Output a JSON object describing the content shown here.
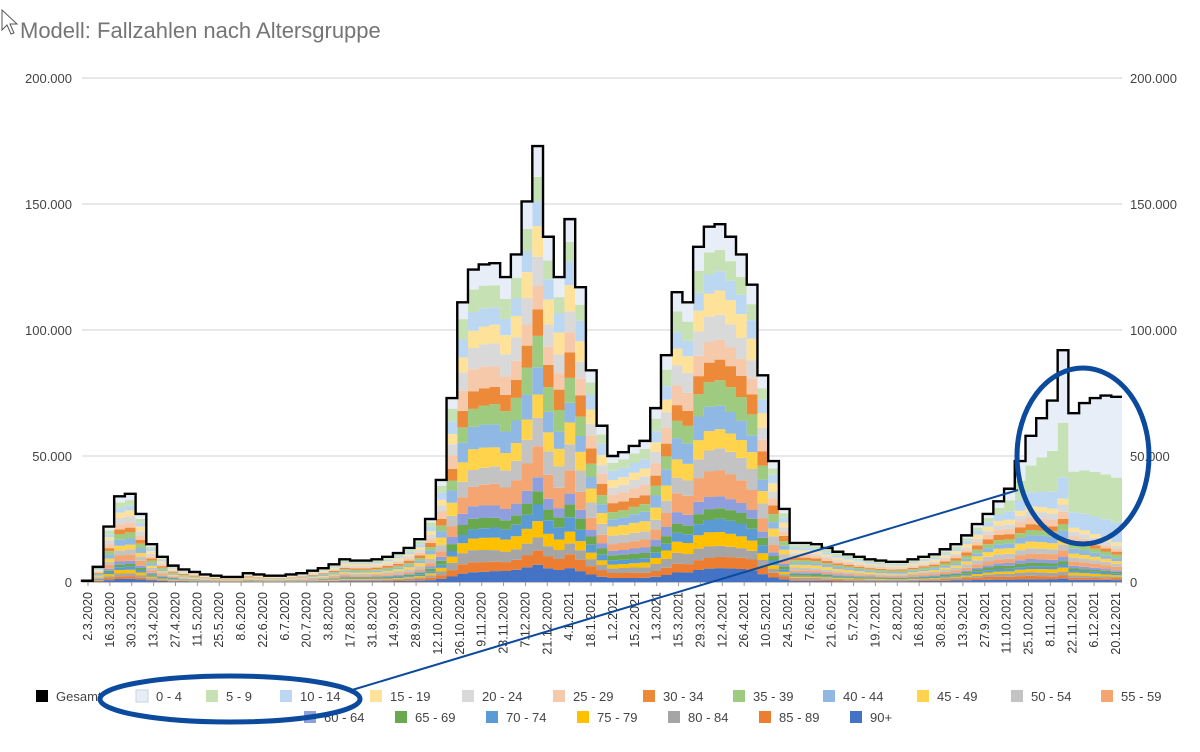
{
  "chart_data": {
    "type": "area",
    "stacked": true,
    "step": true,
    "title": "Modell: Fallzahlen nach Altersgruppe",
    "xlabel": "",
    "ylabel": "",
    "ylim": [
      0,
      200000
    ],
    "y_ticks": [
      "0",
      "50.000",
      "100.000",
      "150.000",
      "200.000"
    ],
    "x_tick_labels": [
      "2.3.2020",
      "16.3.2020",
      "30.3.2020",
      "13.4.2020",
      "27.4.2020",
      "11.5.2020",
      "25.5.2020",
      "8.6.2020",
      "22.6.2020",
      "6.7.2020",
      "20.7.2020",
      "3.8.2020",
      "17.8.2020",
      "31.8.2020",
      "14.9.2020",
      "28.9.2020",
      "12.10.2020",
      "26.10.2020",
      "9.11.2020",
      "23.11.2020",
      "7.12.2020",
      "21.12.2020",
      "4.1.2021",
      "18.1.2021",
      "1.2.2021",
      "15.2.2021",
      "1.3.2021",
      "15.3.2021",
      "29.3.2021",
      "12.4.2021",
      "26.4.2021",
      "10.5.2021",
      "24.5.2021",
      "7.6.2021",
      "21.6.2021",
      "5.7.2021",
      "19.7.2021",
      "2.8.2021",
      "16.8.2021",
      "30.8.2021",
      "13.9.2021",
      "27.9.2021",
      "11.10.2021",
      "25.10.2021",
      "8.11.2021",
      "22.11.2021",
      "6.12.2021",
      "20.12.2021"
    ],
    "total_series": {
      "name": "Gesamt",
      "color": "#000000",
      "values": [
        500,
        6000,
        22000,
        34000,
        35000,
        27000,
        15000,
        10000,
        6500,
        5000,
        4000,
        3000,
        2500,
        2000,
        2000,
        3500,
        3000,
        2500,
        2500,
        3000,
        3500,
        4500,
        5500,
        7000,
        9000,
        8500,
        8500,
        9000,
        10000,
        11500,
        13500,
        17000,
        25000,
        40500,
        73000,
        111000,
        124000,
        126000,
        126500,
        121000,
        130000,
        151000,
        173000,
        137000,
        121000,
        144000,
        117000,
        84000,
        62000,
        50000,
        51500,
        54000,
        56000,
        69000,
        90000,
        115000,
        111000,
        133000,
        141000,
        142000,
        137000,
        130000,
        118000,
        82000,
        48000,
        29000,
        15500,
        15500,
        15000,
        13500,
        12000,
        11000,
        10000,
        9000,
        8500,
        8000,
        8000,
        9000,
        10000,
        11000,
        13000,
        15000,
        18500,
        23000,
        27000,
        32000,
        37000,
        48000,
        58000,
        65000,
        72000,
        92000,
        67000,
        71000,
        73000,
        74000,
        73500
      ]
    },
    "age_groups": [
      {
        "name": "0 - 4",
        "color": "#e8eef8"
      },
      {
        "name": "5 - 9",
        "color": "#c6e2b4"
      },
      {
        "name": "10 - 14",
        "color": "#bcd7f2"
      },
      {
        "name": "15 - 19",
        "color": "#ffe29a"
      },
      {
        "name": "20 - 24",
        "color": "#d9d9d9"
      },
      {
        "name": "25 - 29",
        "color": "#f7c9ab"
      },
      {
        "name": "30 - 34",
        "color": "#ec8a3a"
      },
      {
        "name": "35 - 39",
        "color": "#9ecb80"
      },
      {
        "name": "40 - 44",
        "color": "#8fb8e5"
      },
      {
        "name": "45 - 49",
        "color": "#ffd44c"
      },
      {
        "name": "50 - 54",
        "color": "#c3c3c3"
      },
      {
        "name": "55 - 59",
        "color": "#f4a572"
      },
      {
        "name": "60 - 64",
        "color": "#8f9fdd"
      },
      {
        "name": "65 - 69",
        "color": "#6aa84f"
      },
      {
        "name": "70 - 74",
        "color": "#5b9bd5"
      },
      {
        "name": "75 - 79",
        "color": "#ffc000"
      },
      {
        "name": "80 - 84",
        "color": "#a5a5a5"
      },
      {
        "name": "85 - 89",
        "color": "#ed7d31"
      },
      {
        "name": "90+",
        "color": "#4472c4"
      }
    ],
    "legend": {
      "position": "bottom",
      "items": [
        {
          "name": "Gesamt",
          "color": "#000000"
        },
        {
          "name": "0 - 4",
          "color": "#e8eef8"
        },
        {
          "name": "5 - 9",
          "color": "#c6e2b4"
        },
        {
          "name": "10 - 14",
          "color": "#bcd7f2"
        },
        {
          "name": "15 - 19",
          "color": "#ffe29a"
        },
        {
          "name": "20 - 24",
          "color": "#d9d9d9"
        },
        {
          "name": "25 - 29",
          "color": "#f7c9ab"
        },
        {
          "name": "30 - 34",
          "color": "#ec8a3a"
        },
        {
          "name": "35 - 39",
          "color": "#9ecb80"
        },
        {
          "name": "40 - 44",
          "color": "#8fb8e5"
        },
        {
          "name": "45 - 49",
          "color": "#ffd44c"
        },
        {
          "name": "50 - 54",
          "color": "#c3c3c3"
        },
        {
          "name": "55 - 59",
          "color": "#f4a572"
        },
        {
          "name": "60 - 64",
          "color": "#8f9fdd"
        },
        {
          "name": "65 - 69",
          "color": "#6aa84f"
        },
        {
          "name": "70 - 74",
          "color": "#5b9bd5"
        },
        {
          "name": "75 - 79",
          "color": "#ffc000"
        },
        {
          "name": "80 - 84",
          "color": "#a5a5a5"
        },
        {
          "name": "85 - 89",
          "color": "#ed7d31"
        },
        {
          "name": "90+",
          "color": "#4472c4"
        }
      ]
    },
    "annotations": {
      "color": "#0b4a9c",
      "description": "blue ellipses highlighting the late-2021 wave and the legend entries 0 - 4, 5 - 9, 10 - 14, connected by a line"
    }
  }
}
